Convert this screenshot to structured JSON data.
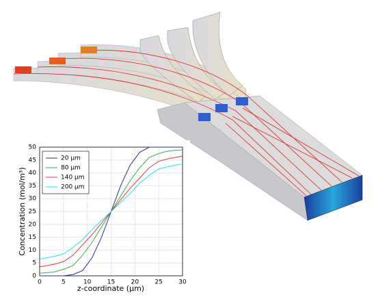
{
  "chart_data": {
    "type": "line",
    "xlabel": "z-coordinate (µm)",
    "ylabel": "Concentration (mol/m³)",
    "x": [
      0,
      3,
      5,
      7,
      9,
      11,
      13,
      15,
      17,
      19,
      21,
      23,
      25,
      27,
      30
    ],
    "series": [
      {
        "name": "20 µm",
        "color": "#2a2a9c",
        "values": [
          0,
          0,
          0,
          0.5,
          2,
          7,
          15,
          25,
          35,
          43,
          48,
          50,
          50,
          50,
          50
        ]
      },
      {
        "name": "80 µm",
        "color": "#3cb043",
        "values": [
          1,
          1.5,
          2.5,
          4,
          8,
          13,
          19,
          25,
          31,
          37,
          42,
          46,
          47.5,
          48.5,
          49
        ]
      },
      {
        "name": "140 µm",
        "color": "#e8363a",
        "values": [
          3.5,
          4.5,
          5.5,
          8,
          12,
          16,
          20.5,
          25,
          29.5,
          34,
          38,
          42,
          44.5,
          45.5,
          46.5
        ]
      },
      {
        "name": "200 µm",
        "color": "#22e0f0",
        "values": [
          6.5,
          7.5,
          8.5,
          11,
          14,
          18,
          21.5,
          25,
          28.5,
          32,
          36,
          39,
          41.5,
          42.5,
          43.5
        ]
      }
    ],
    "xlim": [
      0,
      30
    ],
    "xticks": [
      0,
      5,
      10,
      15,
      20,
      25,
      30
    ],
    "ylim": [
      0,
      50
    ],
    "yticks": [
      0,
      5,
      10,
      15,
      20,
      25,
      30,
      35,
      40,
      45,
      50
    ],
    "grid": true,
    "legend": "upper left"
  }
}
